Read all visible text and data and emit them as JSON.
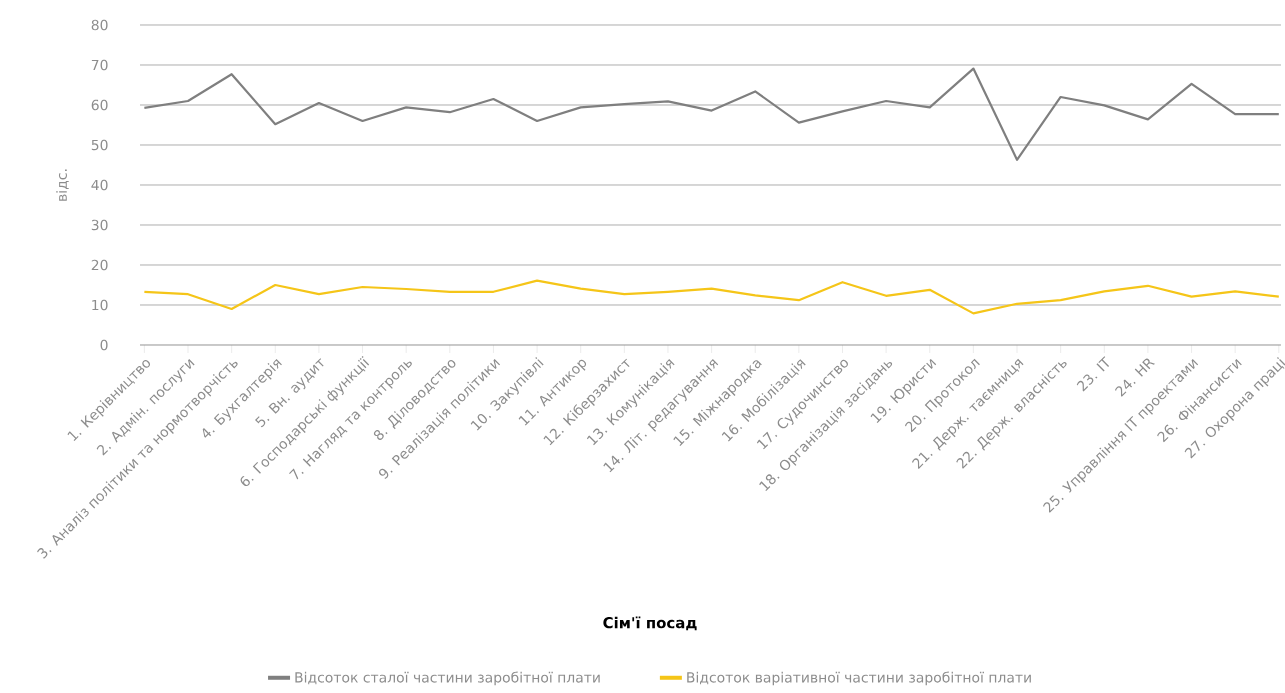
{
  "chart_data": {
    "type": "line",
    "xlabel": "Сім'ї посад",
    "ylabel": "відс.",
    "categories": [
      "1. Керівництво",
      "2. Адмін. послуги",
      "3. Аналіз політики та нормотворчість",
      "4. Бухгалтерія",
      "5. Вн. аудит",
      "6. Господарські функції",
      "7. Нагляд та контроль",
      "8. Діловодство",
      "9. Реалізація політики",
      "10. Закупівлі",
      "11. Антикор",
      "12. Кіберзахист",
      "13. Комунікація",
      "14. Літ. редагування",
      "15. Міжнародка",
      "16. Мобілізація",
      "17. Судочинство",
      "18. Організація засідань",
      "19. Юристи",
      "20. Протокол",
      "21. Держ. таємниця",
      "22. Держ. власність",
      "23. IT",
      "24. HR",
      "25. Управління IT проектами",
      "26. Фінансисти",
      "27. Охорона праці"
    ],
    "series": [
      {
        "name": "Відсоток сталої частини заробітної плати",
        "color": "#7f7f7f",
        "values": [
          59.3,
          61,
          67.7,
          55.2,
          60.5,
          56,
          59.4,
          58.2,
          61.5,
          56,
          59.4,
          60.2,
          60.9,
          58.6,
          63.4,
          55.6,
          58.4,
          61,
          59.4,
          69.1,
          46.3,
          62,
          59.9,
          56.4,
          65.3,
          57.7,
          57.7
        ]
      },
      {
        "name": "Відсоток варіативної частини заробітної плати",
        "color": "#f5c518",
        "values": [
          13.3,
          12.7,
          9,
          15,
          12.7,
          14.5,
          14,
          13.3,
          13.3,
          16.1,
          14.1,
          12.7,
          13.3,
          14.1,
          12.4,
          11.2,
          15.7,
          12.3,
          13.8,
          7.9,
          10.3,
          11.2,
          13.4,
          14.8,
          12.1,
          13.4,
          12.1
        ]
      }
    ],
    "ylim": [
      0,
      80
    ],
    "yticks": [
      0,
      10,
      20,
      30,
      40,
      50,
      60,
      70,
      80
    ],
    "grid": "y",
    "legend": "bottom"
  }
}
